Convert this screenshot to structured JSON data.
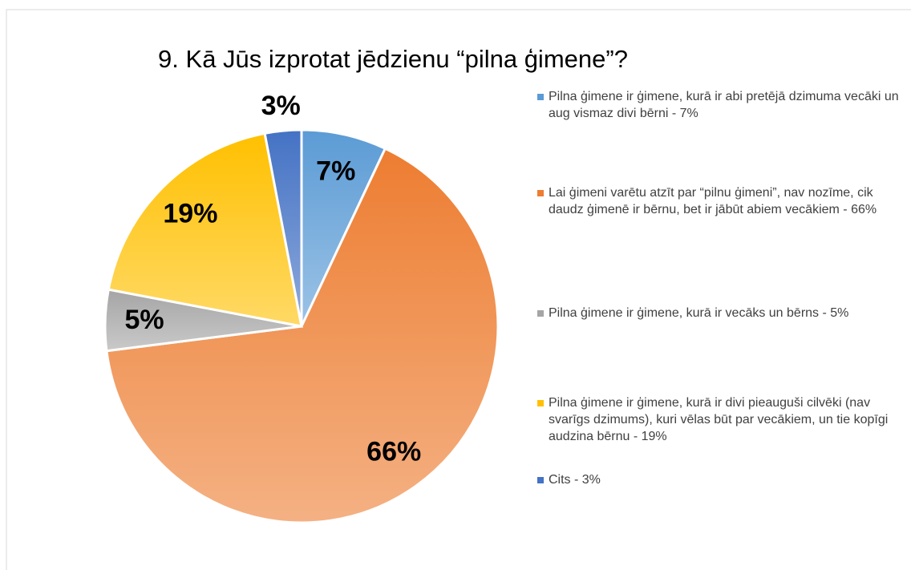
{
  "chart_data": {
    "type": "pie",
    "title": "9. Kā Jūs izprotat jēdzienu “pilna ģimene”?",
    "categories": [
      "Pilna ģimene ir ģimene, kurā ir abi pretējā dzimuma vecāki un aug vismaz divi bērni - 7%",
      "Lai ģimeni varētu atzīt par “pilnu ģimeni”, nav nozīme, cik daudz ģimenē ir bērnu, bet ir jābūt abiem vecākiem - 66%",
      "Pilna ģimene ir ģimene, kurā ir vecāks un bērns - 5%",
      "Pilna ģimene ir ģimene, kurā ir divi pieauguši cilvēki (nav svarīgs dzimums), kuri vēlas būt par vecākiem, un tie kopīgi audzina bērnu - 19%",
      "Cits - 3%"
    ],
    "values": [
      7,
      66,
      5,
      19,
      3
    ],
    "value_labels": [
      "7%",
      "66%",
      "5%",
      "19%",
      "3%"
    ],
    "colors": [
      "#5b9bd5",
      "#ed7d31",
      "#a5a5a5",
      "#ffc000",
      "#4472c4"
    ]
  }
}
